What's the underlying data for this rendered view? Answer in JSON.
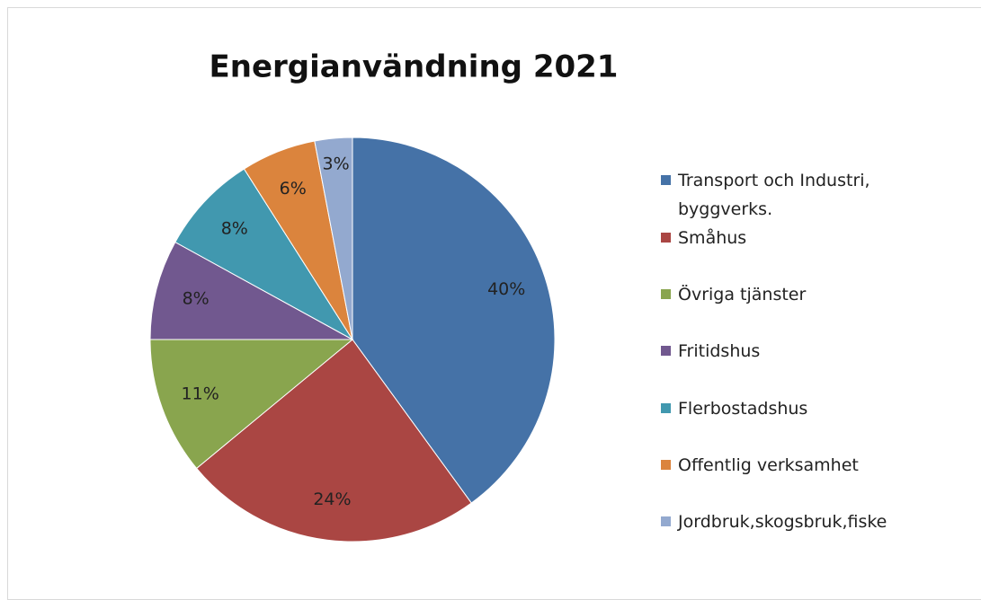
{
  "chart_data": {
    "type": "pie",
    "title": "Energianvändning 2021",
    "categories": [
      "Transport och Industri, byggverks.",
      "Småhus",
      "Övriga tjänster",
      "Fritidshus",
      "Flerbostadshus",
      "Offentlig verksamhet",
      "Jordbruk,skogsbruk,fiske"
    ],
    "values": [
      40,
      24,
      11,
      8,
      8,
      6,
      3
    ],
    "value_labels": [
      "40%",
      "24%",
      "11%",
      "8%",
      "8%",
      "6%",
      "3%"
    ],
    "colors": [
      "#4572a7",
      "#aa4643",
      "#89a54e",
      "#71588f",
      "#4198af",
      "#db843d",
      "#93a9cf"
    ],
    "legend": "right"
  }
}
